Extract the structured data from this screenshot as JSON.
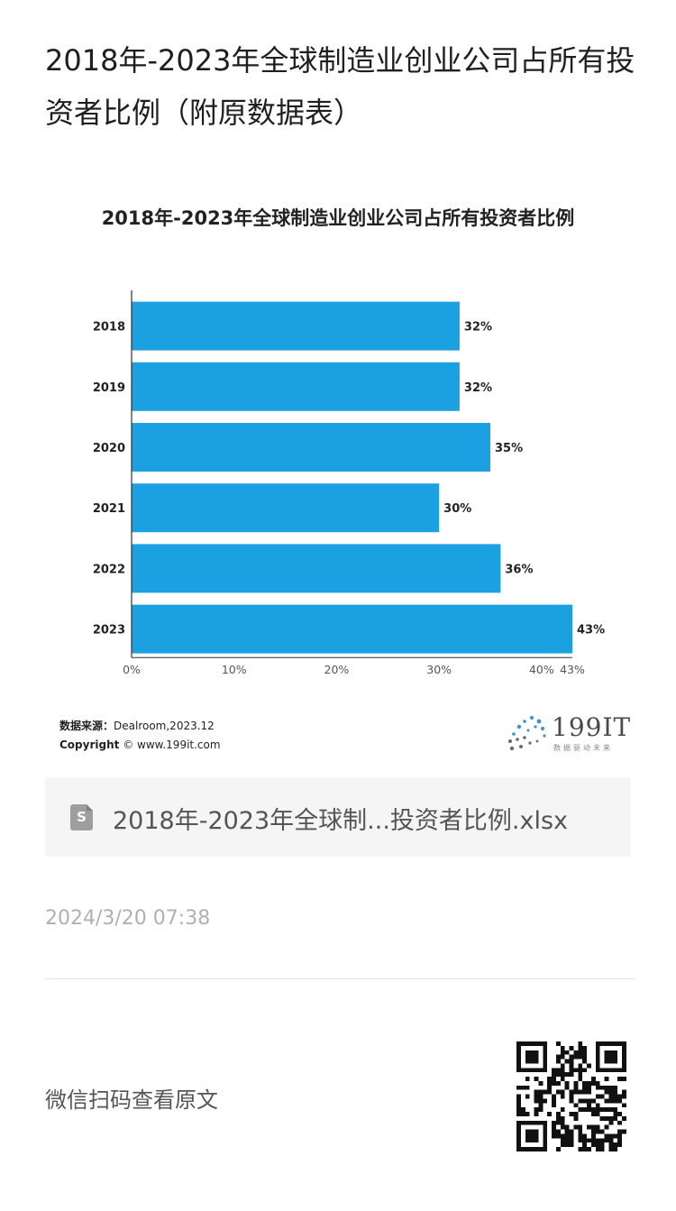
{
  "page": {
    "title": "2018年-2023年全球制造业创业公司占所有投资者比例（附原数据表）",
    "date": "2024/3/20 07:38",
    "qr_label": "微信扫码查看原文"
  },
  "attachment": {
    "icon": "spreadsheet-file-icon",
    "icon_letter": "S",
    "filename": "2018年-2023年全球制...投资者比例.xlsx"
  },
  "source": {
    "label": "数据来源：",
    "value": "Dealroom,2023.12",
    "copyright_label": "Copyright",
    "copyright_value": "© www.199it.com"
  },
  "logo": {
    "text": "199IT",
    "tagline": "数据驱动未来"
  },
  "colors": {
    "bar": "#1ba1e2",
    "axis": "#333333",
    "text": "#222222"
  },
  "chart_data": {
    "type": "bar",
    "orientation": "horizontal",
    "title": "2018年-2023年全球制造业创业公司占所有投资者比例",
    "categories": [
      "2018",
      "2019",
      "2020",
      "2021",
      "2022",
      "2023"
    ],
    "values": [
      32,
      32,
      35,
      30,
      36,
      43
    ],
    "data_labels": [
      "32%",
      "32%",
      "35%",
      "30%",
      "36%",
      "43%"
    ],
    "x_ticks": [
      0,
      10,
      20,
      30,
      40,
      43
    ],
    "x_tick_labels": [
      "0%",
      "10%",
      "20%",
      "30%",
      "40%",
      "43%"
    ],
    "xlim": [
      0,
      43
    ],
    "grid": false,
    "legend": "none"
  }
}
